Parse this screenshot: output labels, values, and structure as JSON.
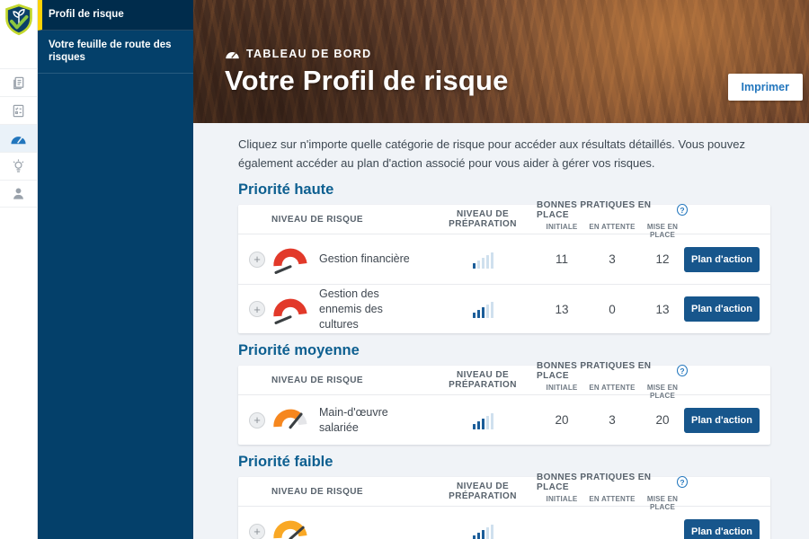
{
  "colors": {
    "accent_blue": "#2276bd",
    "sidenav_bg": "#04406a",
    "sidenav_active_bg": "#002c4c",
    "sidenav_active_border": "#fcd207",
    "section_title": "#0d5f90",
    "action_button_bg": "#17568c",
    "gauge_high": "#e2392a",
    "gauge_medium": "#f6871f",
    "gauge_low": "#f9a825",
    "gauge_neutral": "#e4e5e8",
    "gauge_needle": "#3a3f42",
    "bar_dark": "#1b5d99",
    "bar_light": "#cfe0ee"
  },
  "rail": {
    "icons": [
      "documents-icon",
      "checklist-icon",
      "dashboard-gauge-icon",
      "lightbulb-icon",
      "person-icon"
    ],
    "active_icon": "dashboard-gauge-icon"
  },
  "sidebar": {
    "items": [
      {
        "label": "Profil de risque",
        "active": true
      },
      {
        "label": "Votre feuille de route des risques",
        "active": false
      }
    ]
  },
  "header": {
    "eyebrow": "TABLEAU DE BORD",
    "title": "Votre Profil de risque",
    "print_label": "Imprimer"
  },
  "intro": "Cliquez sur n'importe quelle catégorie de risque pour accéder aux résultats détaillés. Vous pouvez également accéder au plan d'action associé pour vous aider à gérer vos risques.",
  "table": {
    "risk_header": "NIVEAU DE RISQUE",
    "preparation_header": "NIVEAU DE PRÉPARATION",
    "practices_header": "BONNES PRATIQUES EN PLACE",
    "practices_help_icon": "question-circle-icon",
    "practices_sub": [
      "INITIALE",
      "EN ATTENTE",
      "MISE EN PLACE"
    ],
    "action_label": "Plan d'action"
  },
  "sections": [
    {
      "title": "Priorité haute",
      "rows": [
        {
          "name": "Gestion financière",
          "gauge": "high",
          "prep_level": 1,
          "initiale": 11,
          "en_attente": 3,
          "mise_en_place": 12
        },
        {
          "name": "Gestion des ennemis des cultures",
          "gauge": "high",
          "prep_level": 3,
          "initiale": 13,
          "en_attente": 0,
          "mise_en_place": 13
        }
      ]
    },
    {
      "title": "Priorité moyenne",
      "rows": [
        {
          "name": "Main-d'œuvre salariée",
          "gauge": "medium",
          "prep_level": 3,
          "initiale": 20,
          "en_attente": 3,
          "mise_en_place": 20
        }
      ]
    },
    {
      "title": "Priorité faible",
      "rows": [
        {
          "name": "",
          "gauge": "low",
          "prep_level": 3,
          "initiale": null,
          "en_attente": null,
          "mise_en_place": null
        }
      ]
    }
  ]
}
